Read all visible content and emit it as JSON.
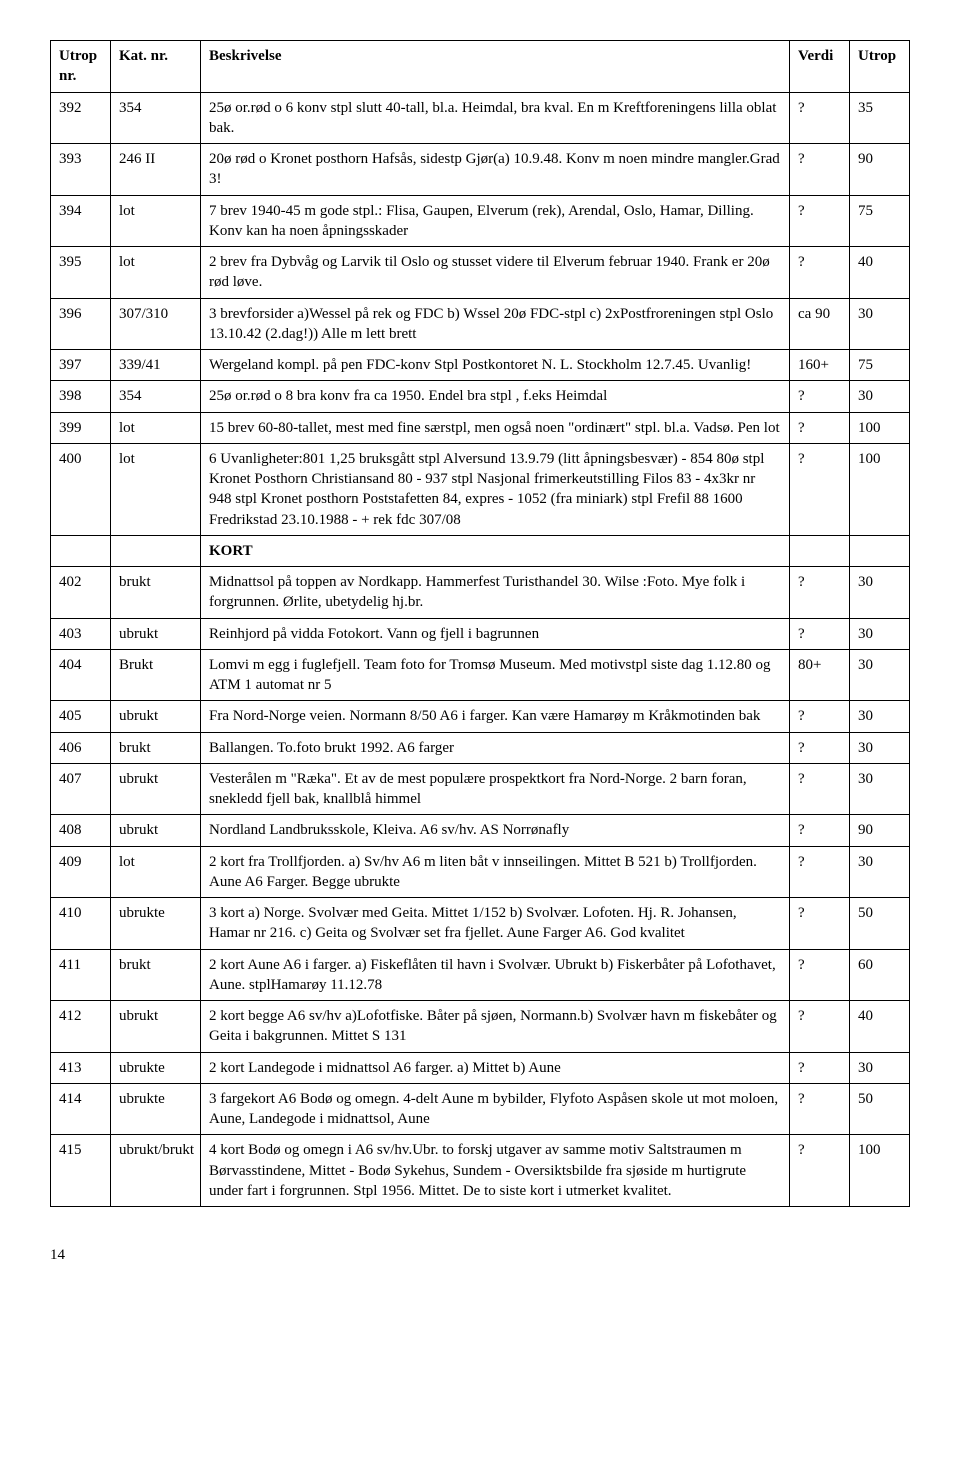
{
  "headers": {
    "utrop_nr": "Utrop nr.",
    "kat_nr": "Kat. nr.",
    "beskrivelse": "Beskrivelse",
    "verdi": "Verdi",
    "utrop": "Utrop"
  },
  "rows": [
    {
      "utrop_nr": "392",
      "kat_nr": "354",
      "beskrivelse": "25ø or.rød o 6 konv stpl slutt 40-tall, bl.a. Heimdal, bra kval. En m Kreftforeningens lilla oblat bak.",
      "verdi": "?",
      "utrop": "35"
    },
    {
      "utrop_nr": "393",
      "kat_nr": "246 II",
      "beskrivelse": "20ø rød o Kronet posthorn Hafsås, sidestp Gjør(a) 10.9.48. Konv m noen mindre mangler.Grad 3!",
      "verdi": "?",
      "utrop": "90"
    },
    {
      "utrop_nr": "394",
      "kat_nr": "lot",
      "beskrivelse": "7 brev 1940-45 m gode stpl.: Flisa, Gaupen, Elverum (rek), Arendal, Oslo, Hamar, Dilling. Konv kan ha noen åpningsskader",
      "verdi": "?",
      "utrop": "75"
    },
    {
      "utrop_nr": "395",
      "kat_nr": "lot",
      "beskrivelse": "2 brev fra Dybvåg og Larvik til Oslo og stusset videre til Elverum februar 1940. Frank er 20ø rød løve.",
      "verdi": "?",
      "utrop": "40"
    },
    {
      "utrop_nr": "396",
      "kat_nr": "307/310",
      "beskrivelse": "3 brevforsider a)Wessel på rek og FDC b) Wssel 20ø FDC-stpl c) 2xPostfroreningen stpl Oslo 13.10.42 (2.dag!)) Alle m lett brett",
      "verdi": "ca 90",
      "utrop": "30"
    },
    {
      "utrop_nr": "397",
      "kat_nr": "339/41",
      "beskrivelse": "Wergeland kompl. på pen FDC-konv Stpl Postkontoret N. L. Stockholm 12.7.45. Uvanlig!",
      "verdi": "160+",
      "utrop": "75"
    },
    {
      "utrop_nr": "398",
      "kat_nr": "354",
      "beskrivelse": "25ø or.rød o 8 bra konv fra ca 1950. Endel bra stpl , f.eks Heimdal",
      "verdi": "?",
      "utrop": "30"
    },
    {
      "utrop_nr": "399",
      "kat_nr": "lot",
      "beskrivelse": "15 brev 60-80-tallet, mest med fine særstpl, men også noen \"ordinært\" stpl. bl.a. Vadsø. Pen lot",
      "verdi": "?",
      "utrop": "100"
    },
    {
      "utrop_nr": "400",
      "kat_nr": "lot",
      "beskrivelse": "6 Uvanligheter:801 1,25 bruksgått stpl Alversund 13.9.79 (litt åpningsbesvær) - 854 80ø stpl Kronet Posthorn Christiansand 80 - 937 stpl Nasjonal frimerkeutstilling Filos 83 - 4x3kr nr 948 stpl Kronet posthorn Poststafetten 84, expres - 1052 (fra miniark) stpl Frefil 88 1600 Fredrikstad 23.10.1988 - + rek fdc 307/08",
      "verdi": "?",
      "utrop": "100"
    },
    {
      "utrop_nr": "",
      "kat_nr": "",
      "beskrivelse": "KORT",
      "verdi": "",
      "utrop": "",
      "section": true
    },
    {
      "utrop_nr": "402",
      "kat_nr": "brukt",
      "beskrivelse": "Midnattsol på toppen av Nordkapp. Hammerfest Turisthandel 30. Wilse :Foto. Mye folk i forgrunnen. Ørlite, ubetydelig hj.br.",
      "verdi": "?",
      "utrop": "30"
    },
    {
      "utrop_nr": "403",
      "kat_nr": "ubrukt",
      "beskrivelse": "Reinhjord på vidda Fotokort. Vann og fjell i bagrunnen",
      "verdi": "?",
      "utrop": "30"
    },
    {
      "utrop_nr": "404",
      "kat_nr": "Brukt",
      "beskrivelse": "Lomvi m egg i fuglefjell. Team foto for Tromsø Museum. Med motivstpl siste dag 1.12.80 og ATM 1 automat nr 5",
      "verdi": "80+",
      "utrop": "30"
    },
    {
      "utrop_nr": "405",
      "kat_nr": "ubrukt",
      "beskrivelse": "Fra Nord-Norge veien. Normann 8/50 A6 i farger. Kan være Hamarøy m Kråkmotinden bak",
      "verdi": "?",
      "utrop": "30"
    },
    {
      "utrop_nr": "406",
      "kat_nr": "brukt",
      "beskrivelse": "Ballangen. To.foto brukt 1992. A6 farger",
      "verdi": "?",
      "utrop": "30"
    },
    {
      "utrop_nr": "407",
      "kat_nr": "ubrukt",
      "beskrivelse": "Vesterålen m \"Ræka\". Et av de mest populære prospektkort fra Nord-Norge. 2 barn foran, snekledd fjell bak, knallblå himmel",
      "verdi": "?",
      "utrop": "30"
    },
    {
      "utrop_nr": "408",
      "kat_nr": "ubrukt",
      "beskrivelse": "Nordland Landbruksskole, Kleiva. A6 sv/hv. AS Norrønafly",
      "verdi": "?",
      "utrop": "90"
    },
    {
      "utrop_nr": "409",
      "kat_nr": "lot",
      "beskrivelse": "2 kort fra Trollfjorden. a) Sv/hv A6 m liten båt v innseilingen. Mittet B 521 b) Trollfjorden. Aune A6 Farger. Begge ubrukte",
      "verdi": "?",
      "utrop": "30"
    },
    {
      "utrop_nr": "410",
      "kat_nr": "ubrukte",
      "beskrivelse": "3 kort a) Norge. Svolvær med Geita. Mittet 1/152 b) Svolvær. Lofoten. Hj. R. Johansen, Hamar nr 216. c) Geita og Svolvær set fra fjellet. Aune Farger A6. God kvalitet",
      "verdi": "?",
      "utrop": "50"
    },
    {
      "utrop_nr": "411",
      "kat_nr": "brukt",
      "beskrivelse": "2 kort Aune A6 i farger. a) Fiskeflåten til havn i Svolvær. Ubrukt b) Fiskerbåter på Lofothavet, Aune. stplHamarøy 11.12.78",
      "verdi": "?",
      "utrop": "60"
    },
    {
      "utrop_nr": "412",
      "kat_nr": "ubrukt",
      "beskrivelse": "2 kort begge A6 sv/hv a)Lofotfiske. Båter på sjøen, Normann.b) Svolvær havn m fiskebåter og Geita i bakgrunnen. Mittet S 131",
      "verdi": "?",
      "utrop": "40"
    },
    {
      "utrop_nr": "413",
      "kat_nr": "ubrukte",
      "beskrivelse": "2 kort Landegode i midnattsol A6 farger. a) Mittet b) Aune",
      "verdi": "?",
      "utrop": "30"
    },
    {
      "utrop_nr": "414",
      "kat_nr": "ubrukte",
      "beskrivelse": "3 fargekort A6 Bodø og omegn. 4-delt Aune m bybilder, Flyfoto Aspåsen skole ut mot moloen, Aune, Landegode i midnattsol, Aune",
      "verdi": "?",
      "utrop": "50"
    },
    {
      "utrop_nr": "415",
      "kat_nr": "ubrukt/brukt",
      "beskrivelse": "4 kort Bodø og omegn i A6 sv/hv.Ubr. to forskj utgaver av samme motiv Saltstraumen m Børvasstindene, Mittet - Bodø Sykehus, Sundem - Oversiktsbilde fra sjøside m hurtigrute under fart i forgrunnen. Stpl 1956. Mittet. De to siste kort i utmerket kvalitet.",
      "verdi": "?",
      "utrop": "100"
    }
  ],
  "page_number": "14",
  "style": {
    "background": "#ffffff",
    "text_color": "#000000",
    "border_color": "#000000",
    "font_family": "Times New Roman"
  }
}
